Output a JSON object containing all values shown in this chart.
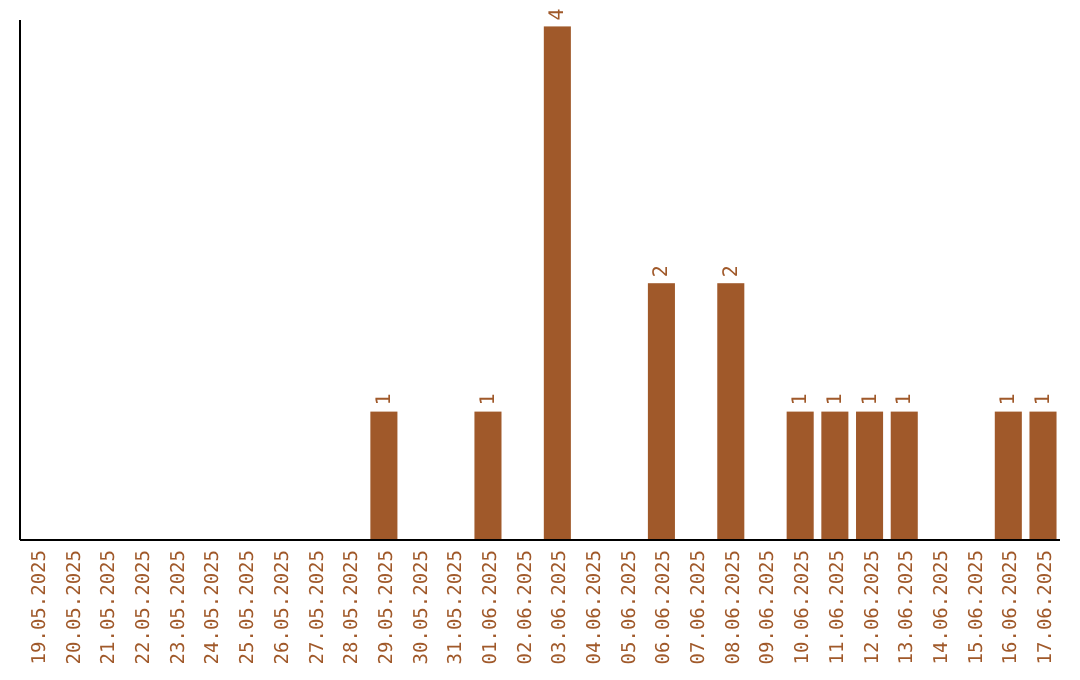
{
  "chart_data": {
    "type": "bar",
    "categories": [
      "19.05.2025",
      "20.05.2025",
      "21.05.2025",
      "22.05.2025",
      "23.05.2025",
      "24.05.2025",
      "25.05.2025",
      "26.05.2025",
      "27.05.2025",
      "28.05.2025",
      "29.05.2025",
      "30.05.2025",
      "31.05.2025",
      "01.06.2025",
      "02.06.2025",
      "03.06.2025",
      "04.06.2025",
      "05.06.2025",
      "06.06.2025",
      "07.06.2025",
      "08.06.2025",
      "09.06.2025",
      "10.06.2025",
      "11.06.2025",
      "12.06.2025",
      "13.06.2025",
      "14.06.2025",
      "15.06.2025",
      "16.06.2025",
      "17.06.2025"
    ],
    "values": [
      0,
      0,
      0,
      0,
      0,
      0,
      0,
      0,
      0,
      0,
      1,
      0,
      0,
      1,
      0,
      4,
      0,
      0,
      2,
      0,
      2,
      0,
      1,
      1,
      1,
      1,
      0,
      0,
      1,
      1
    ],
    "value_labels": [
      null,
      null,
      null,
      null,
      null,
      null,
      null,
      null,
      null,
      null,
      "1",
      null,
      null,
      "1",
      null,
      "4",
      null,
      null,
      "2",
      null,
      "2",
      null,
      "1",
      "1",
      "1",
      "1",
      null,
      null,
      "1",
      "1"
    ],
    "color": "#a0592a",
    "ylim": [
      0,
      4.05
    ],
    "tick_labels": "x"
  }
}
